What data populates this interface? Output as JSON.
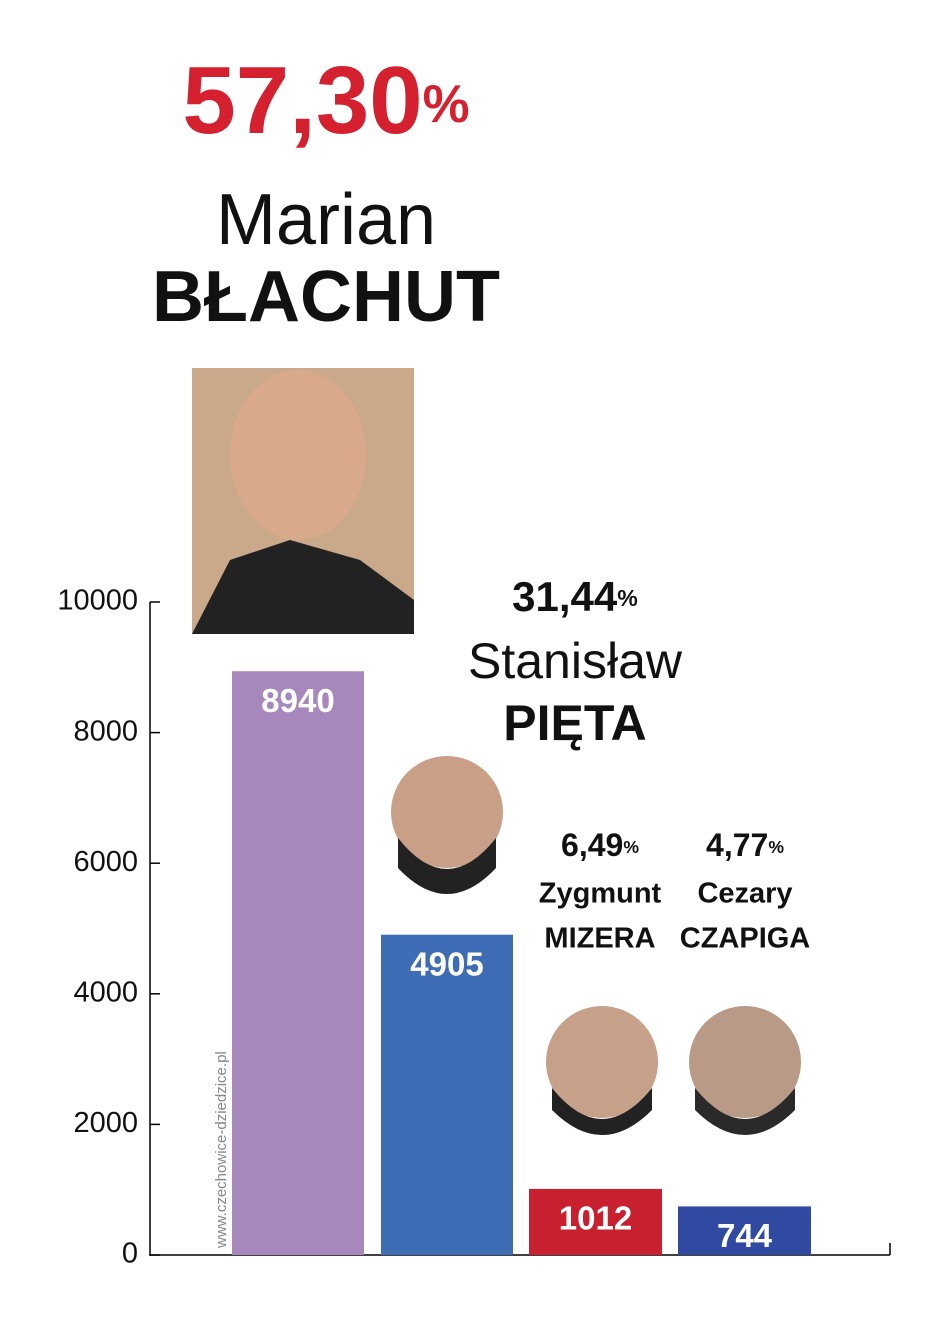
{
  "chart_data": {
    "type": "bar",
    "source": "www.czechowice-dziedzice.pl",
    "candidates": [
      {
        "percent": "57,30%",
        "first_name": "Marian",
        "last_name": "BŁACHUT"
      },
      {
        "percent": "31,44%",
        "first_name": "Stanisław",
        "last_name": "PIĘTA"
      },
      {
        "percent": "6,49%",
        "first_name": "Zygmunt",
        "last_name": "MIZERA"
      },
      {
        "percent": "4,77%",
        "first_name": "Cezary",
        "last_name": "CZAPIGA"
      }
    ],
    "values": [
      8940,
      4905,
      1012,
      744
    ],
    "colors": [
      "#a688bd",
      "#3f6db5",
      "#c8202f",
      "#2f4aa0"
    ],
    "ylim": [
      0,
      10000
    ],
    "yticks": [
      0,
      2000,
      4000,
      6000,
      8000,
      10000
    ]
  }
}
